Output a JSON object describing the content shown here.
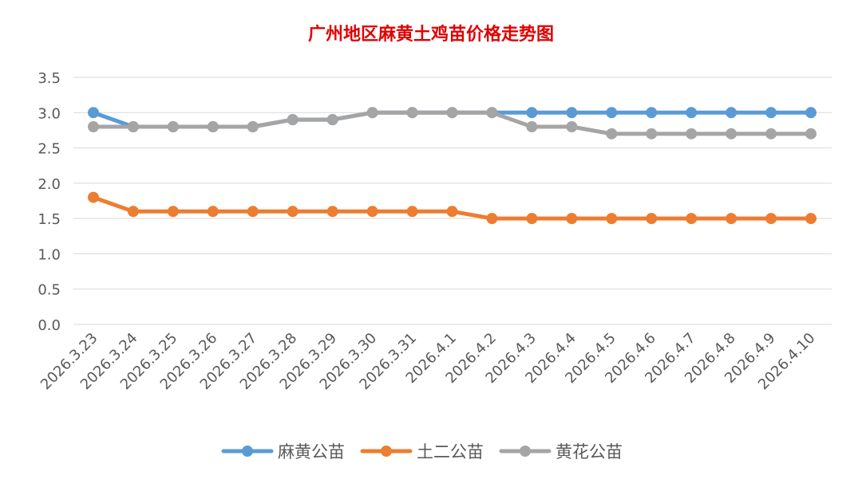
{
  "chart_data": {
    "type": "line",
    "title": "广州地区麻黄土鸡苗价格走势图",
    "xlabel": "",
    "ylabel": "",
    "ylim": [
      0,
      3.5
    ],
    "yticks": [
      "0.0",
      "0.5",
      "1.0",
      "1.5",
      "2.0",
      "2.5",
      "3.0",
      "3.5"
    ],
    "grid": "horizontal",
    "legend_position": "bottom",
    "categories": [
      "2026.3.23",
      "2026.3.24",
      "2026.3.25",
      "2026.3.26",
      "2026.3.27",
      "2026.3.28",
      "2026.3.29",
      "2026.3.30",
      "2026.3.31",
      "2026.4.1",
      "2026.4.2",
      "2026.4.3",
      "2026.4.4",
      "2026.4.5",
      "2026.4.6",
      "2026.4.7",
      "2026.4.8",
      "2026.4.9",
      "2026.4.10"
    ],
    "series": [
      {
        "name": "麻黄公苗",
        "color": "#5B9BD5",
        "values": [
          3.0,
          2.8,
          2.8,
          2.8,
          2.8,
          2.9,
          2.9,
          3.0,
          3.0,
          3.0,
          3.0,
          3.0,
          3.0,
          3.0,
          3.0,
          3.0,
          3.0,
          3.0,
          3.0
        ]
      },
      {
        "name": "土二公苗",
        "color": "#ED7D31",
        "values": [
          1.8,
          1.6,
          1.6,
          1.6,
          1.6,
          1.6,
          1.6,
          1.6,
          1.6,
          1.6,
          1.5,
          1.5,
          1.5,
          1.5,
          1.5,
          1.5,
          1.5,
          1.5,
          1.5
        ]
      },
      {
        "name": "黄花公苗",
        "color": "#A5A5A5",
        "values": [
          2.8,
          2.8,
          2.8,
          2.8,
          2.8,
          2.9,
          2.9,
          3.0,
          3.0,
          3.0,
          3.0,
          2.8,
          2.8,
          2.7,
          2.7,
          2.7,
          2.7,
          2.7,
          2.7
        ]
      }
    ]
  },
  "colors": {
    "title": "#E00000",
    "grid": "#D9D9D9",
    "axis_text": "#595959"
  }
}
